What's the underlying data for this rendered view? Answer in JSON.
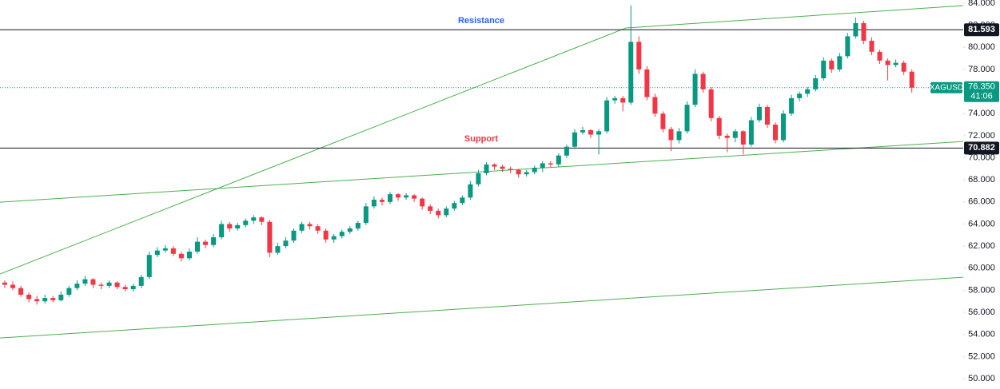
{
  "chart_data": {
    "type": "candlestick",
    "symbol": "XAGUSD",
    "up_color": "#089981",
    "down_color": "#f23645",
    "trend_color": "#4caf50",
    "xlim": [
      0,
      120
    ],
    "ylim": [
      50,
      84
    ],
    "yticks": [
      {
        "value": 50,
        "label": "50.000"
      },
      {
        "value": 52,
        "label": "52.000"
      },
      {
        "value": 54,
        "label": "54.000"
      },
      {
        "value": 56,
        "label": "56.000"
      },
      {
        "value": 58,
        "label": "58.000"
      },
      {
        "value": 60,
        "label": "60.000"
      },
      {
        "value": 62,
        "label": "62.000"
      },
      {
        "value": 64,
        "label": "64.000"
      },
      {
        "value": 66,
        "label": "66.000"
      },
      {
        "value": 68,
        "label": "68.000"
      },
      {
        "value": 70,
        "label": "70.000"
      },
      {
        "value": 72,
        "label": "72.000"
      },
      {
        "value": 74,
        "label": "74.000"
      },
      {
        "value": 76,
        "label": "76.000"
      },
      {
        "value": 78,
        "label": "78.000"
      },
      {
        "value": 80,
        "label": "80.000"
      },
      {
        "value": 82,
        "label": "82.000"
      },
      {
        "value": 84,
        "label": "84.000"
      }
    ],
    "levels": [
      {
        "name": "Resistance",
        "value": 81.593,
        "color": "#2962ff"
      },
      {
        "name": "Support",
        "value": 70.882,
        "color": "#f23645"
      }
    ],
    "last_price": 76.35,
    "last_price_label": "76.350",
    "countdown": "41:06",
    "trendlines": [
      {
        "x": [
          0,
          78
        ],
        "y": [
          59.47,
          81.76
        ]
      },
      {
        "x": [
          78,
          120
        ],
        "y": [
          81.76,
          83.78
        ]
      },
      {
        "x": [
          0,
          120
        ],
        "y": [
          65.98,
          71.48
        ]
      },
      {
        "x": [
          0,
          120
        ],
        "y": [
          53.68,
          59.18
        ]
      }
    ],
    "candles": [
      [
        58.7,
        58.9,
        58.2,
        58.5
      ],
      [
        58.5,
        58.8,
        58.0,
        58.2
      ],
      [
        58.2,
        58.4,
        57.4,
        57.6
      ],
      [
        57.6,
        57.8,
        56.9,
        57.2
      ],
      [
        57.2,
        57.5,
        56.7,
        57.0
      ],
      [
        57.0,
        57.6,
        56.8,
        57.3
      ],
      [
        57.3,
        57.5,
        56.9,
        57.1
      ],
      [
        57.1,
        57.9,
        57.0,
        57.6
      ],
      [
        57.6,
        58.4,
        57.4,
        58.2
      ],
      [
        58.2,
        58.9,
        58.0,
        58.6
      ],
      [
        58.6,
        59.3,
        58.4,
        59.0
      ],
      [
        59.0,
        59.1,
        58.2,
        58.5
      ],
      [
        58.5,
        58.7,
        58.1,
        58.4
      ],
      [
        58.4,
        58.9,
        58.2,
        58.7
      ],
      [
        58.7,
        58.8,
        58.1,
        58.3
      ],
      [
        58.3,
        58.5,
        57.9,
        58.1
      ],
      [
        58.1,
        58.6,
        57.9,
        58.4
      ],
      [
        58.4,
        59.4,
        58.2,
        59.2
      ],
      [
        59.2,
        61.5,
        59.0,
        61.2
      ],
      [
        61.2,
        61.9,
        61.0,
        61.6
      ],
      [
        61.6,
        62.1,
        61.4,
        61.8
      ],
      [
        61.8,
        62.0,
        61.1,
        61.3
      ],
      [
        61.3,
        61.5,
        60.6,
        60.9
      ],
      [
        60.9,
        61.8,
        60.7,
        61.5
      ],
      [
        61.5,
        62.8,
        61.3,
        62.4
      ],
      [
        62.4,
        62.6,
        61.8,
        62.1
      ],
      [
        62.1,
        63.1,
        61.9,
        62.8
      ],
      [
        62.8,
        64.3,
        62.6,
        64.0
      ],
      [
        64.0,
        64.2,
        63.3,
        63.6
      ],
      [
        63.6,
        64.1,
        63.4,
        63.9
      ],
      [
        63.9,
        64.5,
        63.7,
        64.3
      ],
      [
        64.3,
        64.8,
        64.0,
        64.6
      ],
      [
        64.6,
        64.7,
        63.9,
        64.2
      ],
      [
        64.2,
        64.4,
        61.0,
        61.4
      ],
      [
        61.4,
        62.3,
        61.2,
        62.0
      ],
      [
        62.0,
        62.8,
        61.8,
        62.5
      ],
      [
        62.5,
        63.6,
        62.3,
        63.4
      ],
      [
        63.4,
        64.2,
        63.2,
        64.0
      ],
      [
        64.0,
        64.2,
        63.5,
        63.8
      ],
      [
        63.8,
        64.0,
        63.1,
        63.4
      ],
      [
        63.4,
        63.6,
        62.3,
        62.6
      ],
      [
        62.6,
        63.1,
        62.3,
        62.9
      ],
      [
        62.9,
        63.5,
        62.7,
        63.3
      ],
      [
        63.3,
        63.8,
        63.1,
        63.6
      ],
      [
        63.6,
        64.3,
        63.4,
        64.1
      ],
      [
        64.1,
        65.9,
        63.9,
        65.6
      ],
      [
        65.6,
        66.5,
        65.4,
        66.2
      ],
      [
        66.2,
        66.4,
        65.7,
        66.0
      ],
      [
        66.0,
        66.9,
        65.8,
        66.7
      ],
      [
        66.7,
        66.8,
        66.1,
        66.4
      ],
      [
        66.4,
        66.8,
        66.2,
        66.6
      ],
      [
        66.6,
        66.7,
        66.0,
        66.3
      ],
      [
        66.3,
        66.4,
        65.3,
        65.6
      ],
      [
        65.6,
        65.8,
        64.9,
        65.2
      ],
      [
        65.2,
        65.4,
        64.5,
        64.8
      ],
      [
        64.8,
        65.6,
        64.6,
        65.4
      ],
      [
        65.4,
        66.1,
        65.2,
        65.9
      ],
      [
        65.9,
        66.6,
        65.7,
        66.4
      ],
      [
        66.4,
        67.9,
        66.2,
        67.6
      ],
      [
        67.6,
        68.9,
        67.4,
        68.6
      ],
      [
        68.6,
        69.6,
        68.4,
        69.4
      ],
      [
        69.4,
        69.5,
        68.9,
        69.2
      ],
      [
        69.2,
        69.4,
        68.7,
        69.0
      ],
      [
        69.0,
        69.2,
        68.6,
        68.9
      ],
      [
        68.9,
        69.0,
        68.2,
        68.5
      ],
      [
        68.5,
        68.9,
        68.3,
        68.7
      ],
      [
        68.7,
        69.3,
        68.5,
        69.1
      ],
      [
        69.1,
        69.7,
        68.7,
        69.5
      ],
      [
        69.5,
        69.7,
        69.1,
        69.4
      ],
      [
        69.4,
        70.4,
        69.2,
        70.2
      ],
      [
        70.2,
        71.2,
        70.0,
        71.0
      ],
      [
        71.0,
        72.6,
        70.8,
        72.3
      ],
      [
        72.3,
        72.8,
        72.1,
        72.5
      ],
      [
        72.5,
        72.6,
        71.8,
        72.1
      ],
      [
        72.1,
        72.6,
        70.3,
        72.4
      ],
      [
        72.4,
        75.5,
        72.2,
        75.2
      ],
      [
        75.2,
        75.6,
        74.9,
        75.4
      ],
      [
        75.4,
        75.6,
        74.2,
        75.0
      ],
      [
        75.0,
        83.8,
        74.8,
        80.5
      ],
      [
        80.5,
        81.0,
        77.6,
        78.0
      ],
      [
        78.0,
        78.3,
        75.2,
        75.5
      ],
      [
        75.5,
        75.8,
        73.7,
        74.0
      ],
      [
        74.0,
        74.2,
        72.3,
        72.6
      ],
      [
        72.6,
        72.8,
        70.6,
        71.6
      ],
      [
        71.6,
        72.7,
        71.3,
        72.4
      ],
      [
        72.4,
        75.1,
        72.2,
        74.8
      ],
      [
        74.8,
        78.0,
        74.6,
        77.6
      ],
      [
        77.6,
        77.8,
        75.9,
        76.2
      ],
      [
        76.2,
        76.4,
        73.3,
        73.6
      ],
      [
        73.6,
        73.8,
        71.7,
        72.0
      ],
      [
        72.0,
        72.2,
        70.5,
        71.8
      ],
      [
        71.8,
        72.6,
        71.4,
        72.4
      ],
      [
        72.4,
        72.5,
        70.3,
        71.2
      ],
      [
        71.2,
        73.7,
        71.0,
        73.4
      ],
      [
        73.4,
        74.9,
        73.2,
        74.6
      ],
      [
        74.6,
        74.8,
        72.7,
        73.0
      ],
      [
        73.0,
        73.2,
        71.3,
        71.6
      ],
      [
        71.6,
        74.3,
        71.4,
        74.0
      ],
      [
        74.0,
        75.7,
        73.8,
        75.4
      ],
      [
        75.4,
        76.0,
        75.1,
        75.8
      ],
      [
        75.8,
        76.4,
        75.5,
        76.2
      ],
      [
        76.2,
        77.5,
        76.0,
        77.2
      ],
      [
        77.2,
        79.1,
        77.0,
        78.8
      ],
      [
        78.8,
        79.0,
        77.7,
        78.0
      ],
      [
        78.0,
        79.5,
        77.8,
        79.2
      ],
      [
        79.2,
        81.3,
        79.0,
        81.0
      ],
      [
        81.0,
        82.7,
        80.8,
        82.2
      ],
      [
        82.2,
        82.4,
        80.3,
        80.6
      ],
      [
        80.6,
        80.9,
        79.3,
        79.6
      ],
      [
        79.6,
        79.8,
        78.5,
        78.8
      ],
      [
        78.8,
        79.0,
        77.0,
        78.4
      ],
      [
        78.4,
        78.9,
        78.2,
        78.6
      ],
      [
        78.6,
        78.8,
        77.5,
        77.8
      ],
      [
        77.8,
        78.0,
        75.9,
        76.35
      ]
    ]
  }
}
